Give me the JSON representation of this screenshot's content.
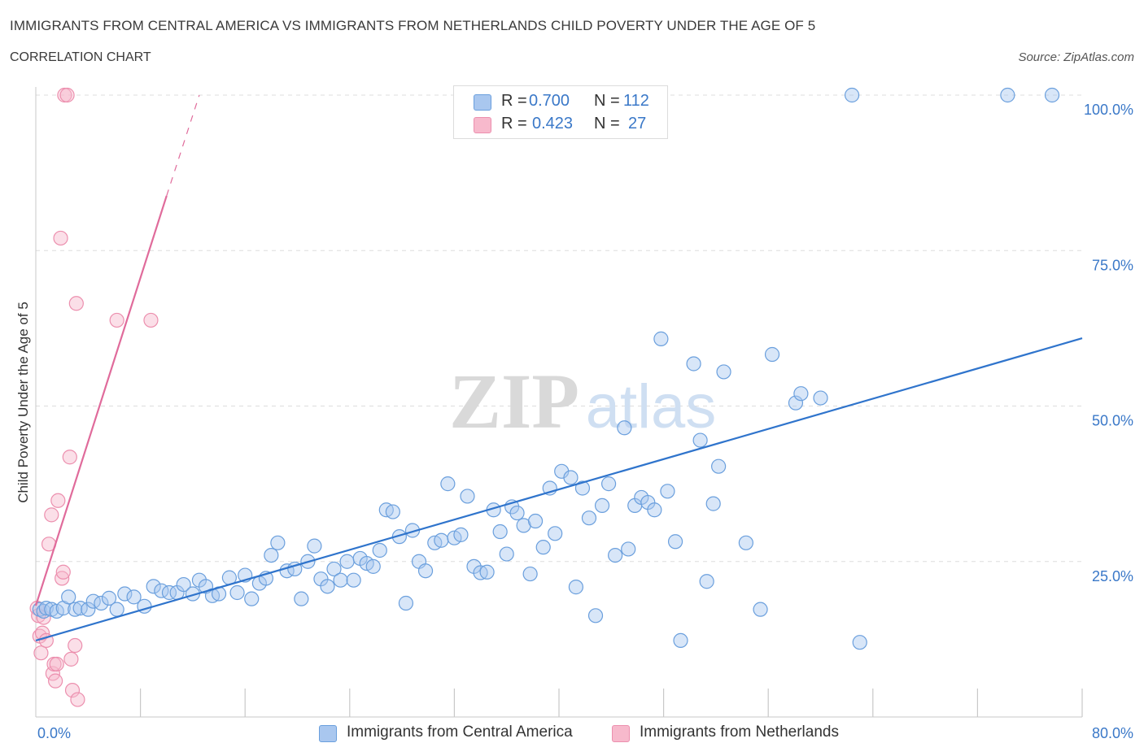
{
  "header": {
    "title": "IMMIGRANTS FROM CENTRAL AMERICA VS IMMIGRANTS FROM NETHERLANDS CHILD POVERTY UNDER THE AGE OF 5",
    "subtitle": "CORRELATION CHART",
    "source": "Source: ZipAtlas.com"
  },
  "watermark": {
    "zip": "ZIP",
    "atlas": "atlas"
  },
  "legend": {
    "r_label": "R =",
    "n_label": "N =",
    "series": [
      {
        "r": "0.700",
        "n": "112"
      },
      {
        "r": "0.423",
        "n": "27"
      }
    ]
  },
  "bottom_legend": {
    "series1": "Immigrants from Central America",
    "series2": "Immigrants from Netherlands"
  },
  "colors": {
    "blue_fill": "#a9c7ef",
    "blue_stroke": "#6a9fdd",
    "blue_line": "#2f74cc",
    "pink_fill": "#f7b9cc",
    "pink_stroke": "#ec8fae",
    "pink_line": "#e06b9b",
    "axis_text": "#3a78c8",
    "grid": "#dddddd"
  },
  "chart_data": {
    "type": "scatter",
    "title": "IMMIGRANTS FROM CENTRAL AMERICA VS IMMIGRANTS FROM NETHERLANDS CHILD POVERTY UNDER THE AGE OF 5",
    "xlabel": "",
    "ylabel": "Child Poverty Under the Age of 5",
    "xlim": [
      0,
      80
    ],
    "ylim": [
      0,
      100
    ],
    "x_tick_labels": [
      "0.0%",
      "80.0%"
    ],
    "y_tick_labels": [
      "25.0%",
      "50.0%",
      "75.0%",
      "100.0%"
    ],
    "y_ticks": [
      25,
      50,
      75,
      100
    ],
    "grid": true,
    "legend_position": "top-center",
    "series": [
      {
        "name": "Immigrants from Central America",
        "R": 0.7,
        "N": 112,
        "trend": {
          "x": [
            0,
            80
          ],
          "y": [
            12.3,
            60.9
          ]
        },
        "points": [
          [
            0.3,
            17.3
          ],
          [
            0.6,
            17.0
          ],
          [
            0.8,
            17.5
          ],
          [
            1.2,
            17.3
          ],
          [
            1.6,
            17.0
          ],
          [
            2.1,
            17.5
          ],
          [
            2.5,
            19.3
          ],
          [
            3.0,
            17.3
          ],
          [
            3.4,
            17.5
          ],
          [
            4.0,
            17.3
          ],
          [
            4.4,
            18.6
          ],
          [
            5.0,
            18.3
          ],
          [
            5.6,
            19.1
          ],
          [
            6.2,
            17.3
          ],
          [
            6.8,
            19.8
          ],
          [
            7.5,
            19.3
          ],
          [
            8.3,
            17.8
          ],
          [
            9.0,
            21.0
          ],
          [
            9.6,
            20.3
          ],
          [
            10.2,
            20.0
          ],
          [
            10.8,
            20.0
          ],
          [
            11.3,
            21.3
          ],
          [
            12.0,
            19.8
          ],
          [
            12.5,
            22.0
          ],
          [
            13.0,
            21.0
          ],
          [
            13.5,
            19.5
          ],
          [
            14.0,
            19.8
          ],
          [
            14.8,
            22.4
          ],
          [
            15.4,
            20.0
          ],
          [
            16.0,
            22.8
          ],
          [
            16.5,
            19.0
          ],
          [
            17.1,
            21.5
          ],
          [
            17.6,
            22.3
          ],
          [
            18.0,
            26.0
          ],
          [
            18.5,
            28.0
          ],
          [
            19.2,
            23.5
          ],
          [
            19.8,
            23.8
          ],
          [
            20.3,
            19.0
          ],
          [
            20.8,
            25.0
          ],
          [
            21.3,
            27.5
          ],
          [
            21.8,
            22.2
          ],
          [
            22.3,
            21.0
          ],
          [
            22.8,
            23.8
          ],
          [
            23.3,
            22.0
          ],
          [
            23.8,
            25.0
          ],
          [
            24.3,
            22.0
          ],
          [
            24.8,
            25.5
          ],
          [
            25.3,
            24.7
          ],
          [
            25.8,
            24.2
          ],
          [
            26.3,
            26.8
          ],
          [
            26.8,
            33.3
          ],
          [
            27.3,
            33.0
          ],
          [
            27.8,
            29.0
          ],
          [
            28.3,
            18.3
          ],
          [
            28.8,
            30.0
          ],
          [
            29.3,
            25.0
          ],
          [
            29.8,
            23.5
          ],
          [
            30.5,
            28.0
          ],
          [
            31.0,
            28.4
          ],
          [
            31.5,
            37.5
          ],
          [
            32.0,
            28.8
          ],
          [
            32.5,
            29.3
          ],
          [
            33.0,
            35.5
          ],
          [
            33.5,
            24.2
          ],
          [
            34.0,
            23.2
          ],
          [
            34.5,
            23.3
          ],
          [
            35.0,
            33.3
          ],
          [
            35.5,
            29.8
          ],
          [
            36.0,
            26.2
          ],
          [
            36.4,
            33.8
          ],
          [
            36.8,
            32.8
          ],
          [
            37.3,
            30.8
          ],
          [
            37.8,
            23.0
          ],
          [
            38.2,
            31.5
          ],
          [
            38.8,
            27.3
          ],
          [
            39.3,
            36.8
          ],
          [
            39.7,
            29.5
          ],
          [
            40.2,
            39.5
          ],
          [
            40.9,
            38.5
          ],
          [
            41.3,
            20.9
          ],
          [
            41.8,
            36.8
          ],
          [
            42.3,
            32.0
          ],
          [
            42.8,
            16.3
          ],
          [
            43.3,
            34.0
          ],
          [
            43.8,
            37.5
          ],
          [
            44.3,
            26.0
          ],
          [
            45.0,
            46.5
          ],
          [
            45.3,
            27.0
          ],
          [
            45.8,
            34.0
          ],
          [
            46.3,
            35.3
          ],
          [
            46.8,
            34.5
          ],
          [
            47.3,
            33.3
          ],
          [
            47.8,
            60.8
          ],
          [
            48.3,
            36.3
          ],
          [
            48.9,
            28.2
          ],
          [
            49.3,
            12.3
          ],
          [
            50.3,
            56.8
          ],
          [
            50.8,
            44.5
          ],
          [
            51.3,
            21.8
          ],
          [
            51.8,
            34.3
          ],
          [
            52.2,
            40.3
          ],
          [
            52.6,
            55.5
          ],
          [
            54.3,
            28.0
          ],
          [
            55.4,
            17.3
          ],
          [
            56.3,
            58.3
          ],
          [
            58.1,
            50.5
          ],
          [
            58.5,
            52.0
          ],
          [
            60.0,
            51.3
          ],
          [
            62.4,
            100.0
          ],
          [
            63.0,
            12.0
          ],
          [
            74.3,
            100.0
          ],
          [
            77.7,
            100.0
          ]
        ]
      },
      {
        "name": "Immigrants from Netherlands",
        "R": 0.423,
        "N": 27,
        "trend": {
          "x": [
            0,
            10.0
          ],
          "y": [
            17.9,
            83.8
          ]
        },
        "trend_dashed": {
          "x": [
            10.0,
            12.5
          ],
          "y": [
            83.8,
            100.0
          ]
        },
        "points": [
          [
            0.1,
            17.5
          ],
          [
            0.2,
            16.3
          ],
          [
            0.3,
            13.0
          ],
          [
            0.4,
            10.3
          ],
          [
            0.5,
            13.5
          ],
          [
            0.6,
            16.0
          ],
          [
            0.8,
            12.3
          ],
          [
            1.0,
            27.8
          ],
          [
            1.2,
            32.5
          ],
          [
            1.3,
            7.0
          ],
          [
            1.4,
            8.5
          ],
          [
            1.5,
            5.8
          ],
          [
            1.6,
            8.5
          ],
          [
            1.7,
            34.8
          ],
          [
            1.9,
            77.0
          ],
          [
            2.0,
            22.3
          ],
          [
            2.1,
            23.3
          ],
          [
            2.2,
            100.0
          ],
          [
            2.4,
            100.0
          ],
          [
            2.6,
            41.8
          ],
          [
            2.7,
            9.3
          ],
          [
            2.8,
            4.3
          ],
          [
            3.0,
            11.5
          ],
          [
            3.1,
            66.5
          ],
          [
            3.2,
            2.8
          ],
          [
            6.2,
            63.8
          ],
          [
            8.8,
            63.8
          ]
        ]
      }
    ]
  }
}
